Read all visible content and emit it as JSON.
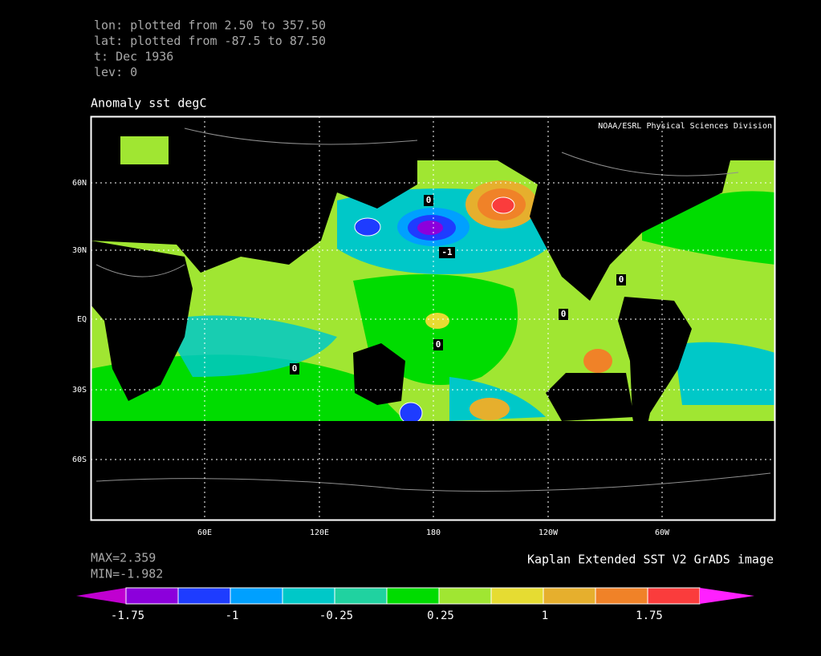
{
  "header": {
    "lines": [
      "lon: plotted from 2.50 to 357.50",
      "lat: plotted from -87.5 to 87.50",
      "t: Dec 1936",
      "lev: 0"
    ]
  },
  "title": "Anomaly sst degC",
  "credit": "NOAA/ESRL Physical Sciences Division",
  "lat_labels": [
    "60N",
    "30N",
    "EQ",
    "30S",
    "60S"
  ],
  "lon_labels": [
    "60E",
    "120E",
    "180",
    "120W",
    "60W"
  ],
  "contour_labels": [
    "0",
    "-1",
    "0",
    "0",
    "0",
    "0"
  ],
  "stats": {
    "max": "MAX=2.359",
    "min": "MIN=-1.982"
  },
  "footer": "Kaplan Extended SST V2 GrADS image",
  "colorbar": {
    "labels": [
      -1.75,
      -1,
      -0.25,
      0.25,
      1,
      1.75
    ],
    "low_color": "#c000d0",
    "high_color": "#ff20ff",
    "colors": [
      "#8c00dc",
      "#1e3cff",
      "#00a0ff",
      "#00c8c8",
      "#20d2a0",
      "#00dc00",
      "#a0e632",
      "#e6dc32",
      "#e6af2d",
      "#f08228",
      "#fa3c3c"
    ]
  }
}
